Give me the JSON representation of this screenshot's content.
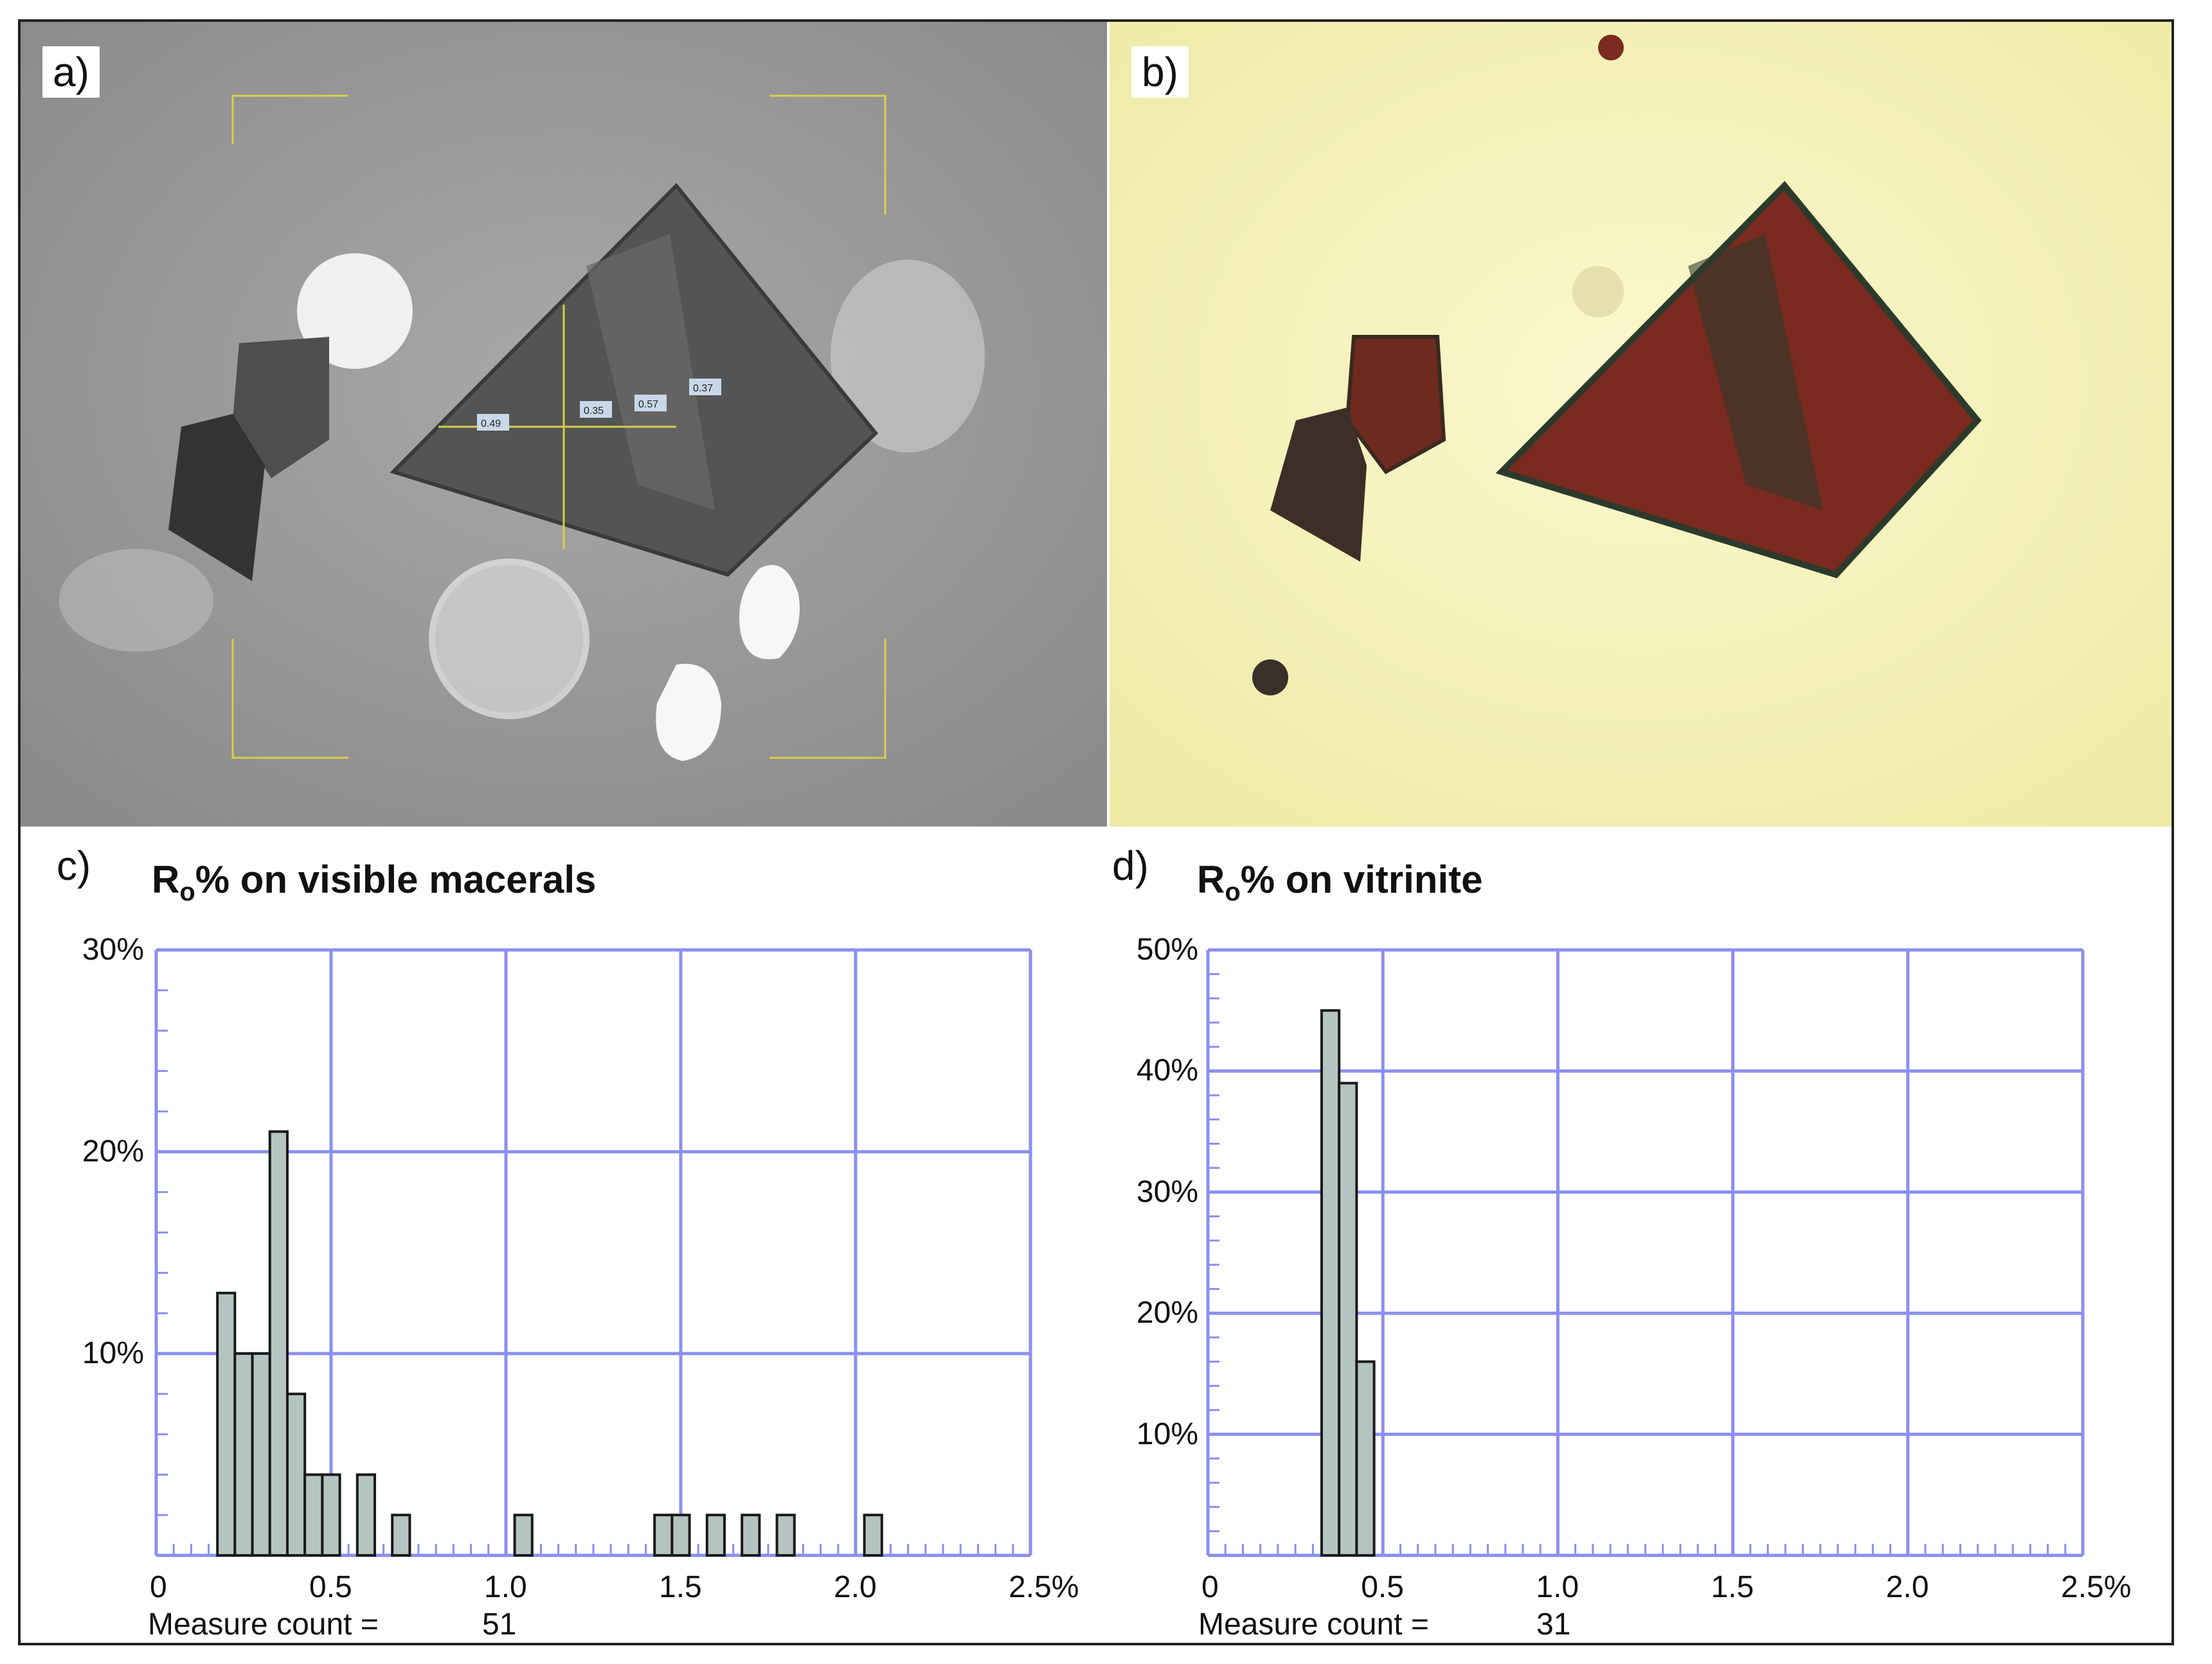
{
  "panels": {
    "a": {
      "label": "a)",
      "readouts": [
        "0.49",
        "0.35",
        "0.57",
        "0.37"
      ]
    },
    "b": {
      "label": "b)"
    }
  },
  "colors": {
    "axis": "#8a8ff0",
    "bar_fill": "#b5c4c0",
    "bar_stroke": "#1a1a1a",
    "photo_a_bg": "#9c9c9c",
    "photo_b_bg": "#f3f0b8",
    "crosshair": "#d8cf4a"
  },
  "chart_data": [
    {
      "id": "c",
      "letter": "c)",
      "type": "bar",
      "title_main": "R",
      "title_sub": "o",
      "title_rest": "% on visible macerals",
      "xlim": [
        0,
        2.5
      ],
      "ylim": [
        0,
        30
      ],
      "xticks": [
        "0",
        "0.5",
        "1.0",
        "1.5",
        "2.0",
        "2.5%"
      ],
      "xtick_values": [
        0,
        0.5,
        1.0,
        1.5,
        2.0,
        2.5
      ],
      "yticks": [
        "10%",
        "20%",
        "30%"
      ],
      "ytick_values": [
        10,
        20,
        30
      ],
      "bin_width": 0.05,
      "bins": [
        {
          "x": 0.2,
          "value": 13
        },
        {
          "x": 0.25,
          "value": 10
        },
        {
          "x": 0.3,
          "value": 10
        },
        {
          "x": 0.35,
          "value": 21
        },
        {
          "x": 0.4,
          "value": 8
        },
        {
          "x": 0.45,
          "value": 4
        },
        {
          "x": 0.5,
          "value": 4
        },
        {
          "x": 0.6,
          "value": 4
        },
        {
          "x": 0.7,
          "value": 2
        },
        {
          "x": 1.05,
          "value": 2
        },
        {
          "x": 1.45,
          "value": 2
        },
        {
          "x": 1.5,
          "value": 2
        },
        {
          "x": 1.6,
          "value": 2
        },
        {
          "x": 1.7,
          "value": 2
        },
        {
          "x": 1.8,
          "value": 2
        },
        {
          "x": 2.05,
          "value": 2
        }
      ],
      "grid": true,
      "count_label": "Measure count =",
      "count_value": "51"
    },
    {
      "id": "d",
      "letter": "d)",
      "type": "bar",
      "title_main": "R",
      "title_sub": "o",
      "title_rest": "% on vitrinite",
      "xlim": [
        0,
        2.5
      ],
      "ylim": [
        0,
        50
      ],
      "xticks": [
        "0",
        "0.5",
        "1.0",
        "1.5",
        "2.0",
        "2.5%"
      ],
      "xtick_values": [
        0,
        0.5,
        1.0,
        1.5,
        2.0,
        2.5
      ],
      "yticks": [
        "10%",
        "20%",
        "30%",
        "40%",
        "50%"
      ],
      "ytick_values": [
        10,
        20,
        30,
        40,
        50
      ],
      "bin_width": 0.05,
      "bins": [
        {
          "x": 0.35,
          "value": 45
        },
        {
          "x": 0.4,
          "value": 39
        },
        {
          "x": 0.45,
          "value": 16
        }
      ],
      "grid": true,
      "count_label": "Measure count =",
      "count_value": "31"
    }
  ]
}
